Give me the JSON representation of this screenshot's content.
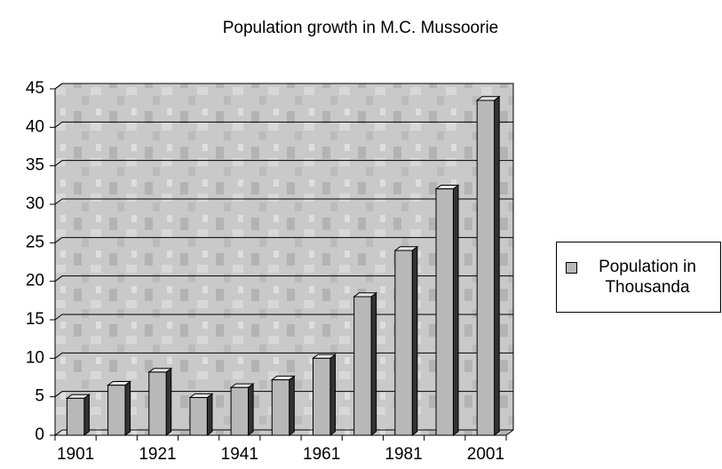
{
  "chart_data": {
    "type": "bar",
    "title": "Population growth in M.C. Mussoorie",
    "categories": [
      "1901",
      null,
      "1921",
      null,
      "1941",
      null,
      "1961",
      null,
      "1981",
      null,
      "2001"
    ],
    "series": [
      {
        "name": "Population in Thousanda",
        "color": "#b8b8b8",
        "values": [
          4.8,
          6.5,
          8.2,
          4.9,
          6.2,
          7.2,
          10,
          18,
          24,
          32,
          43.5
        ]
      }
    ],
    "ylim": [
      0,
      45
    ],
    "yticks": [
      0,
      5,
      10,
      15,
      20,
      25,
      30,
      35,
      40,
      45
    ],
    "grid": true,
    "legend": "right"
  }
}
